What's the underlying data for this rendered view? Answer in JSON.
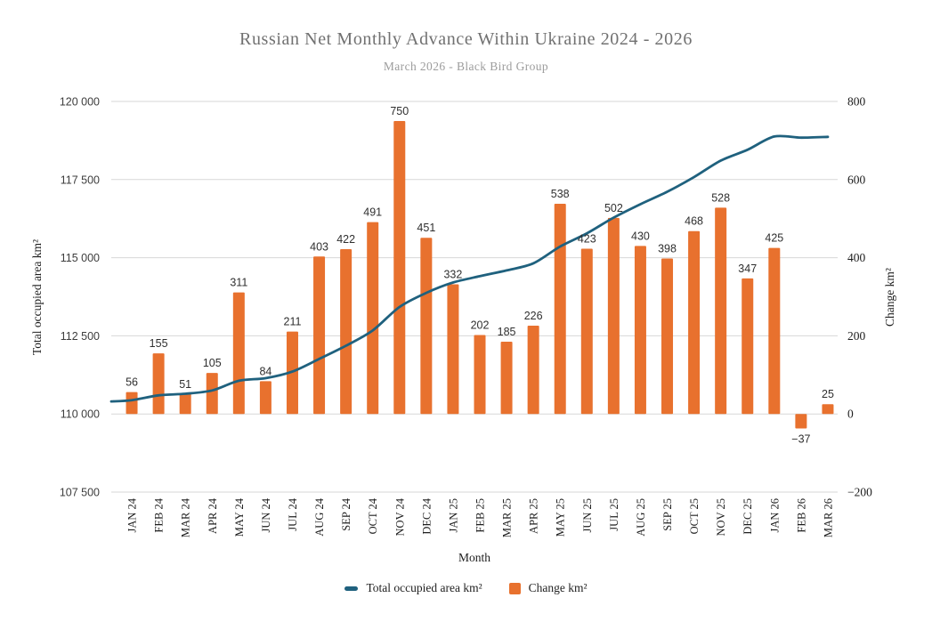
{
  "title": "Russian Net Monthly Advance Within Ukraine 2024 - 2026",
  "subtitle": "March 2026 - Black Bird Group",
  "colors": {
    "line": "#1f617e",
    "bar": "#e8712e",
    "grid": "#d7d7d7",
    "title_text": "#717171",
    "subtitle_text": "#9c9c9c",
    "axis_text": "#1c1c1c",
    "left_tick_text": "#3d3d3d",
    "bar_label_text": "#2f2f2f"
  },
  "chart_data": {
    "type": "combo",
    "categories": [
      "JAN 24",
      "FEB 24",
      "MAR 24",
      "APR 24",
      "MAY 24",
      "JUN 24",
      "JUL 24",
      "AUG 24",
      "SEP 24",
      "OCT 24",
      "NOV 24",
      "DEC 24",
      "JAN 25",
      "FEB 25",
      "MAR 25",
      "APR 25",
      "MAY 25",
      "JUN 25",
      "JUL 25",
      "AUG 25",
      "SEP 25",
      "OCT 25",
      "NOV 25",
      "DEC 25",
      "JAN 26",
      "FEB 26",
      "MAR 26"
    ],
    "series": [
      {
        "name": "Total occupied area km²",
        "type": "line",
        "axis": "left",
        "values": [
          110440,
          110595,
          110646,
          110751,
          111062,
          111146,
          111357,
          111760,
          112182,
          112673,
          113423,
          113874,
          114206,
          114408,
          114593,
          114819,
          115357,
          115780,
          116282,
          116712,
          117110,
          117578,
          118106,
          118453,
          118878,
          118841,
          118866
        ]
      },
      {
        "name": "Change km²",
        "type": "bar",
        "axis": "right",
        "values": [
          56,
          155,
          51,
          105,
          311,
          84,
          211,
          403,
          422,
          491,
          750,
          451,
          332,
          202,
          185,
          226,
          538,
          423,
          502,
          430,
          398,
          468,
          528,
          347,
          425,
          -37,
          25
        ]
      }
    ],
    "bar_value_labels": [
      "56",
      "155",
      "51",
      "105",
      "311",
      "84",
      "211",
      "403",
      "422",
      "491",
      "750",
      "451",
      "332",
      "202",
      "185",
      "226",
      "538",
      "423",
      "502",
      "430",
      "398",
      "468",
      "528",
      "347",
      "425",
      "−37",
      "25"
    ],
    "left_axis": {
      "title": "Total occupied area km²",
      "min": 107500,
      "max": 120000,
      "tick_values": [
        120000,
        117500,
        115000,
        112500,
        110000,
        107500
      ],
      "tick_labels": [
        "120 000",
        "117 500",
        "115 000",
        "112 500",
        "110 000",
        "107 500"
      ]
    },
    "right_axis": {
      "title": "Change km²",
      "min": -200,
      "max": 800,
      "tick_values": [
        800,
        600,
        400,
        200,
        0,
        -200
      ],
      "tick_labels": [
        "800",
        "600",
        "400",
        "200",
        "0",
        "−200"
      ]
    },
    "x_axis": {
      "title": "Month"
    },
    "grid": true,
    "legend_position": "bottom",
    "legend": [
      {
        "label": "Total occupied area km²",
        "shape": "dash"
      },
      {
        "label": "Change km²",
        "shape": "square"
      }
    ]
  }
}
